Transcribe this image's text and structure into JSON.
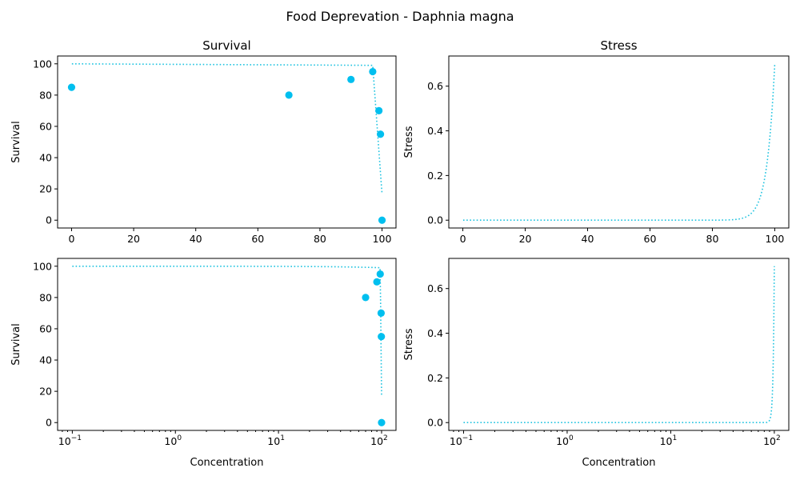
{
  "figure": {
    "suptitle": "Food Deprevation - Daphnia magna"
  },
  "colors": {
    "points": "#00bfef",
    "curve": "#1fc3e0",
    "axes": "#000000"
  },
  "chart_data": [
    {
      "id": "survival-linear",
      "type": "scatter",
      "title": "Survival",
      "xlabel": "",
      "ylabel": "Survival",
      "xscale": "linear",
      "xlim": [
        -4.5,
        104.5
      ],
      "ylim": [
        -5,
        105
      ],
      "xticks": [
        0,
        20,
        40,
        60,
        80,
        100
      ],
      "xtick_labels": [
        "0",
        "20",
        "40",
        "60",
        "80",
        "100"
      ],
      "yticks": [
        0,
        20,
        40,
        60,
        80,
        100
      ],
      "ytick_labels": [
        "0",
        "20",
        "40",
        "60",
        "80",
        "100"
      ],
      "points": {
        "x": [
          0,
          70,
          90,
          97,
          99,
          99.5,
          100
        ],
        "y": [
          85,
          80,
          90,
          95,
          70,
          55,
          0
        ]
      },
      "curve": {
        "kind": "survival",
        "x_range": [
          0.1,
          100
        ],
        "style": "dotted"
      }
    },
    {
      "id": "stress-linear",
      "type": "line",
      "title": "Stress",
      "xlabel": "",
      "ylabel": "Stress",
      "xscale": "linear",
      "xlim": [
        -4.5,
        104.5
      ],
      "ylim": [
        -0.035,
        0.735
      ],
      "xticks": [
        0,
        20,
        40,
        60,
        80,
        100
      ],
      "xtick_labels": [
        "0",
        "20",
        "40",
        "60",
        "80",
        "100"
      ],
      "yticks": [
        0,
        0.2,
        0.4,
        0.6
      ],
      "ytick_labels": [
        "0.0",
        "0.2",
        "0.4",
        "0.6"
      ],
      "curve": {
        "kind": "stress",
        "x_range": [
          0.1,
          100
        ],
        "style": "dotted"
      }
    },
    {
      "id": "survival-log",
      "type": "scatter",
      "title": "",
      "xlabel": "Concentration",
      "ylabel": "Survival",
      "xscale": "log",
      "xlim": [
        0.072,
        138
      ],
      "ylim": [
        -5,
        105
      ],
      "xticks": [
        0.1,
        1,
        10,
        100
      ],
      "xtick_labels": [
        "10",
        "10",
        "10",
        "10"
      ],
      "xtick_exponents": [
        "−1",
        "0",
        "1",
        "2"
      ],
      "yticks": [
        0,
        20,
        40,
        60,
        80,
        100
      ],
      "ytick_labels": [
        "0",
        "20",
        "40",
        "60",
        "80",
        "100"
      ],
      "points": {
        "x": [
          70,
          90,
          97,
          99,
          99.5,
          100
        ],
        "y": [
          80,
          90,
          95,
          70,
          55,
          0
        ]
      },
      "curve": {
        "kind": "survival",
        "x_range": [
          0.1,
          100
        ],
        "style": "dotted"
      }
    },
    {
      "id": "stress-log",
      "type": "line",
      "title": "",
      "xlabel": "Concentration",
      "ylabel": "Stress",
      "xscale": "log",
      "xlim": [
        0.072,
        138
      ],
      "ylim": [
        -0.035,
        0.735
      ],
      "xticks": [
        0.1,
        1,
        10,
        100
      ],
      "xtick_labels": [
        "10",
        "10",
        "10",
        "10"
      ],
      "xtick_exponents": [
        "−1",
        "0",
        "1",
        "2"
      ],
      "yticks": [
        0,
        0.2,
        0.4,
        0.6
      ],
      "ytick_labels": [
        "0.0",
        "0.2",
        "0.4",
        "0.6"
      ],
      "curve": {
        "kind": "stress",
        "x_range": [
          0.1,
          100
        ],
        "style": "dotted"
      }
    }
  ]
}
